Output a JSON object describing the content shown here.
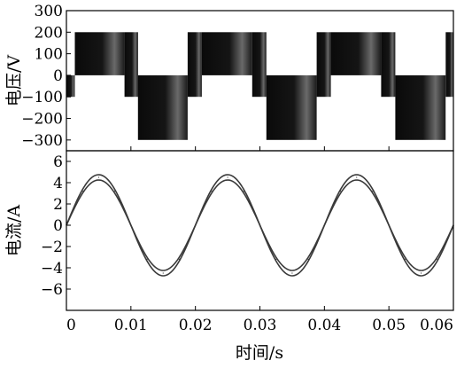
{
  "chart_data": [
    {
      "type": "line",
      "panel": "top",
      "ylabel": "电压/V",
      "ylim": [
        -350,
        300
      ],
      "yticks": [
        300,
        200,
        100,
        0,
        -100,
        -200,
        -300
      ],
      "ytick_labels": [
        "300",
        "200",
        "100",
        "0",
        "−100",
        "−200",
        "−300"
      ],
      "xlim": [
        0,
        0.06
      ],
      "xticks": [
        0.01,
        0.02,
        0.03,
        0.04,
        0.05
      ],
      "grid": false,
      "series": [
        {
          "levels": [
            200,
            0,
            -100,
            -300
          ],
          "segments": [
            {
              "x0": 0.0,
              "x1": 0.0013,
              "from": 0,
              "to": -100
            },
            {
              "x0": 0.0013,
              "x1": 0.009,
              "from": 200,
              "to": 0
            },
            {
              "x0": 0.009,
              "x1": 0.0111,
              "from": 200,
              "to": -100
            },
            {
              "x0": 0.0111,
              "x1": 0.0188,
              "from": 0,
              "to": -300
            },
            {
              "x0": 0.0188,
              "x1": 0.021,
              "from": 200,
              "to": -100
            },
            {
              "x0": 0.021,
              "x1": 0.0288,
              "from": 200,
              "to": 0
            },
            {
              "x0": 0.0288,
              "x1": 0.031,
              "from": 200,
              "to": -100
            },
            {
              "x0": 0.031,
              "x1": 0.0388,
              "from": 0,
              "to": -300
            },
            {
              "x0": 0.0388,
              "x1": 0.041,
              "from": 200,
              "to": -100
            },
            {
              "x0": 0.041,
              "x1": 0.0488,
              "from": 200,
              "to": 0
            },
            {
              "x0": 0.0488,
              "x1": 0.051,
              "from": 200,
              "to": -100
            },
            {
              "x0": 0.051,
              "x1": 0.0588,
              "from": 0,
              "to": -300
            },
            {
              "x0": 0.0588,
              "x1": 0.06,
              "from": 200,
              "to": -100
            }
          ]
        }
      ]
    },
    {
      "type": "line",
      "panel": "bottom",
      "ylabel": "电流/A",
      "xlabel": "时间/s",
      "ylim": [
        -8,
        7
      ],
      "yticks": [
        6,
        4,
        2,
        0,
        -2,
        -4,
        -6
      ],
      "ytick_labels": [
        "6",
        "4",
        "2",
        "0",
        "−2",
        "−4",
        "−6"
      ],
      "xlim": [
        0,
        0.06
      ],
      "xticks": [
        0,
        0.01,
        0.02,
        0.03,
        0.04,
        0.05,
        0.06
      ],
      "xtick_labels": [
        "0",
        "0.01",
        "0.02",
        "0.03",
        "0.04",
        "0.05",
        "0.06"
      ],
      "grid": false,
      "series": [
        {
          "amplitude": 4.5,
          "frequency_hz": 50,
          "band_width": 0.25,
          "color": "#3a3a3a",
          "x": [
            0,
            0.0025,
            0.005,
            0.0075,
            0.01,
            0.0125,
            0.015,
            0.0175,
            0.02,
            0.0225,
            0.025,
            0.0275,
            0.03,
            0.0325,
            0.035,
            0.0375,
            0.04,
            0.0425,
            0.045,
            0.0475,
            0.05,
            0.0525,
            0.055,
            0.0575,
            0.06
          ],
          "values": [
            0,
            3.2,
            4.5,
            3.2,
            0,
            -3.2,
            -4.5,
            -3.2,
            0,
            3.2,
            4.5,
            3.2,
            0,
            -3.2,
            -4.5,
            -3.2,
            0,
            3.2,
            4.5,
            3.2,
            0,
            -3.2,
            -4.5,
            -3.2,
            0
          ]
        }
      ]
    }
  ]
}
